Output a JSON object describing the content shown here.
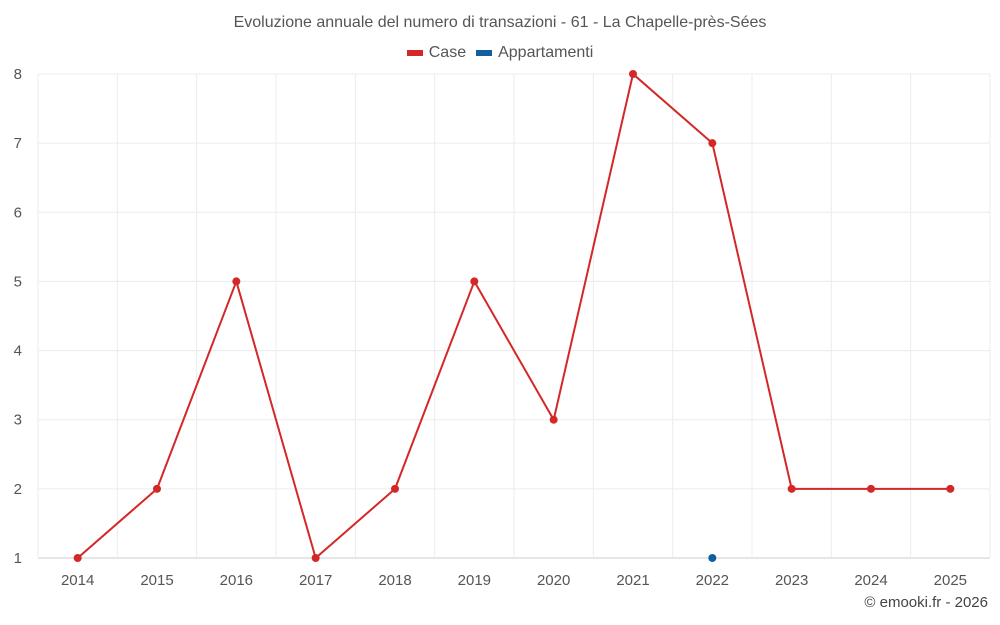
{
  "chart_data": {
    "type": "line",
    "title": "Evoluzione annuale del numero di transazioni - 61 - La Chapelle-près-Sées",
    "categories": [
      "2014",
      "2015",
      "2016",
      "2017",
      "2018",
      "2019",
      "2020",
      "2021",
      "2022",
      "2023",
      "2024",
      "2025"
    ],
    "series": [
      {
        "name": "Case",
        "color": "#d42727",
        "values": [
          1,
          2,
          5,
          1,
          2,
          5,
          3,
          8,
          7,
          2,
          2,
          2
        ]
      },
      {
        "name": "Appartamenti",
        "color": "#1060a0",
        "values": [
          null,
          null,
          null,
          null,
          null,
          null,
          null,
          null,
          1,
          null,
          null,
          null
        ]
      }
    ],
    "ylim": [
      1,
      8
    ],
    "yticks": [
      1,
      2,
      3,
      4,
      5,
      6,
      7,
      8
    ],
    "xlabel": "",
    "ylabel": "",
    "grid": true,
    "legend_position": "top-center"
  },
  "credit": "© emooki.fr - 2026"
}
